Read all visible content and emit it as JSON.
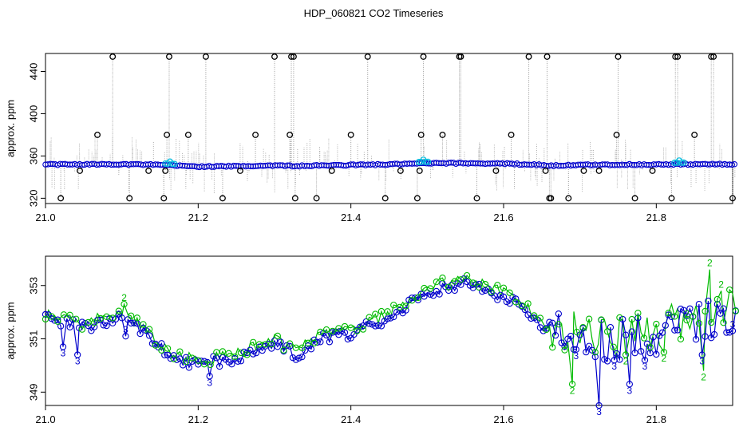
{
  "title": "HDP_060821  CO2 Timeseries",
  "colors": {
    "raw_points": "#000000",
    "raw_line": "#9a9a9a",
    "smooth_circles": "#0000cc",
    "flagged_circles": "#00bbdd",
    "series2": "#00bb00",
    "series3": "#0000cc",
    "line3": "#0000cc",
    "line2": "#00bb00"
  },
  "chart_data": [
    {
      "type": "scatter",
      "name": "raw",
      "ylabel": "approx. ppm",
      "xlabel": "",
      "xlim": [
        21.0,
        21.9
      ],
      "ylim": [
        315,
        457
      ],
      "x_ticks": [
        "21.0",
        "21.2",
        "21.4",
        "21.6",
        "21.8"
      ],
      "y_ticks": [
        "320",
        "360",
        "400",
        "440"
      ],
      "grid": false,
      "baseline": {
        "x": [
          21.0,
          21.05,
          21.1,
          21.15,
          21.2,
          21.25,
          21.3,
          21.33,
          21.4,
          21.45,
          21.49,
          21.5,
          21.55,
          21.6,
          21.65,
          21.66,
          21.7,
          21.75,
          21.8,
          21.85,
          21.9
        ],
        "y": [
          352,
          352,
          352.3,
          351.5,
          350,
          350.3,
          351,
          350.5,
          351.5,
          352,
          352.8,
          353,
          353.2,
          352.8,
          351.5,
          350.8,
          351.5,
          351.8,
          351.9,
          352.3,
          352
        ]
      },
      "flagged_x": [
        21.163,
        21.495,
        21.83
      ],
      "outliers": {
        "x": [
          21.02,
          21.045,
          21.068,
          21.088,
          21.11,
          21.135,
          21.155,
          21.157,
          21.159,
          21.162,
          21.187,
          21.21,
          21.232,
          21.255,
          21.275,
          21.3,
          21.32,
          21.322,
          21.325,
          21.327,
          21.355,
          21.375,
          21.4,
          21.422,
          21.445,
          21.465,
          21.487,
          21.49,
          21.492,
          21.495,
          21.52,
          21.542,
          21.544,
          21.565,
          21.59,
          21.61,
          21.633,
          21.655,
          21.657,
          21.66,
          21.662,
          21.685,
          21.705,
          21.725,
          21.748,
          21.75,
          21.772,
          21.795,
          21.82,
          21.825,
          21.828,
          21.85,
          21.872,
          21.875,
          21.9
        ],
        "y": [
          320,
          346,
          380,
          454,
          320,
          346,
          320,
          346,
          380,
          454,
          380,
          454,
          320,
          346,
          380,
          454,
          380,
          454,
          454,
          320,
          320,
          346,
          380,
          454,
          320,
          346,
          320,
          346,
          380,
          454,
          380,
          454,
          454,
          320,
          346,
          380,
          454,
          346,
          454,
          320,
          320,
          320,
          346,
          346,
          380,
          454,
          320,
          346,
          320,
          454,
          454,
          380,
          454,
          454,
          320
        ]
      }
    },
    {
      "type": "line",
      "name": "smoothed",
      "ylabel": "approx. ppm",
      "xlabel": "",
      "xlim": [
        21.0,
        21.9
      ],
      "ylim": [
        348.5,
        354.1
      ],
      "x_ticks": [
        "21.0",
        "21.2",
        "21.4",
        "21.6",
        "21.8"
      ],
      "y_ticks": [
        "349",
        "351",
        "353"
      ],
      "grid": false,
      "trend": {
        "x": [
          21.0,
          21.05,
          21.1,
          21.13,
          21.16,
          21.2,
          21.25,
          21.3,
          21.33,
          21.36,
          21.4,
          21.45,
          21.5,
          21.55,
          21.6,
          21.63,
          21.66,
          21.7,
          21.75,
          21.8,
          21.85,
          21.9
        ],
        "y": [
          351.8,
          351.4,
          351.9,
          351.2,
          350.4,
          350.0,
          350.3,
          350.8,
          350.4,
          351.0,
          351.2,
          351.8,
          352.8,
          353.1,
          352.6,
          352.0,
          351.3,
          351.1,
          350.9,
          351.2,
          351.7,
          352.0
        ]
      },
      "spikes": {
        "x": [
          21.023,
          21.042,
          21.103,
          21.105,
          21.215,
          21.69,
          21.695,
          21.725,
          21.745,
          21.76,
          21.765,
          21.785,
          21.81,
          21.84,
          21.86,
          21.862,
          21.87,
          21.885,
          21.9
        ],
        "y": [
          350.7,
          350.4,
          352.3,
          351.1,
          349.6,
          349.3,
          350.6,
          348.5,
          350.2,
          350.4,
          349.3,
          350.2,
          350.5,
          351.7,
          350.4,
          349.8,
          353.6,
          352.8,
          351.3
        ],
        "series": [
          "3",
          "3",
          "2",
          "3",
          "3",
          "2",
          "3",
          "3",
          "3",
          "2",
          "3",
          "3",
          "2",
          "2",
          "3",
          "2",
          "2",
          "2",
          "3"
        ]
      }
    }
  ]
}
